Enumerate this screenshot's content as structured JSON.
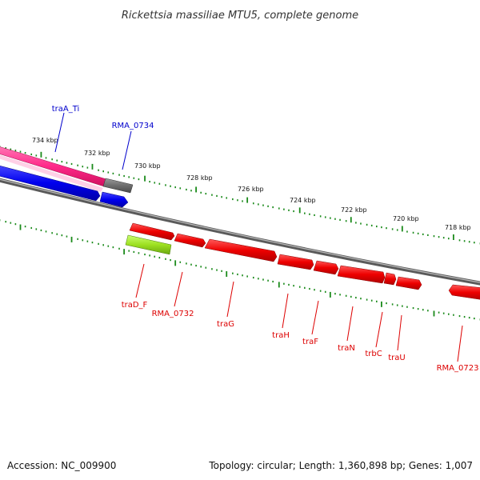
{
  "title": "Rickettsia massiliae MTU5, complete genome",
  "footer": {
    "accession": "Accession: NC_009900",
    "summary": "Topology: circular; Length: 1,360,898 bp; Genes: 1,007"
  },
  "kbp_labels": [
    "734 kbp",
    "732 kbp",
    "730 kbp",
    "728 kbp",
    "726 kbp",
    "724 kbp",
    "722 kbp",
    "720 kbp",
    "718 kbp"
  ],
  "upper_genes": [
    "traA_Ti",
    "RMA_0734"
  ],
  "lower_genes": [
    "traD_F",
    "RMA_0732",
    "traG",
    "traH",
    "traF",
    "traN",
    "trbC",
    "traU",
    "RMA_0723"
  ],
  "colors": {
    "upper_label": "#0000cc",
    "lower_label": "#dd0000",
    "tick": "#1a8a1a",
    "backbone": "#7a7a7a",
    "gene_red": "#ee0000",
    "gene_blue": "#0000ee",
    "gene_pink": "#ff2a8a",
    "gene_gray": "#6e6e6e",
    "gene_green": "#9de020"
  }
}
